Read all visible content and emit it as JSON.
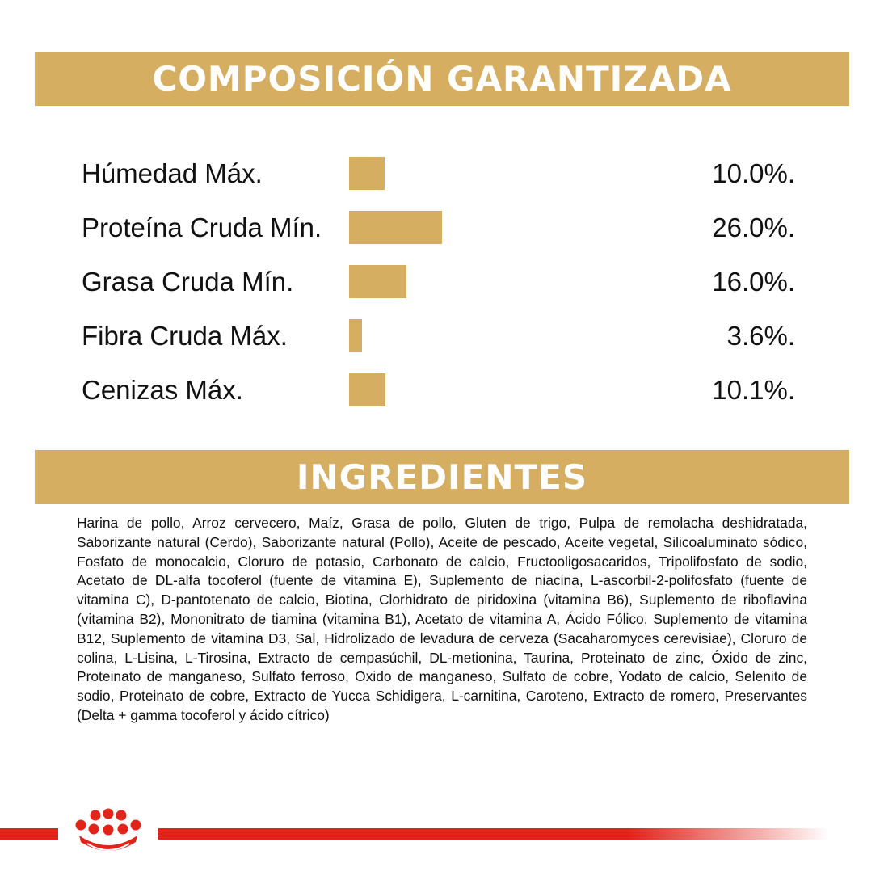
{
  "guaranteed_composition": {
    "title": "COMPOSICIÓN GARANTIZADA",
    "bar_color": "#d5ae62",
    "items": [
      {
        "label": "Húmedad Máx.",
        "value_text": "10.0%.",
        "value": 10.0
      },
      {
        "label": "Proteína Cruda Mín.",
        "value_text": "26.0%.",
        "value": 26.0
      },
      {
        "label": "Grasa Cruda Mín.",
        "value_text": "16.0%.",
        "value": 16.0
      },
      {
        "label": "Fibra Cruda Máx.",
        "value_text": "3.6%.",
        "value": 3.6
      },
      {
        "label": "Cenizas Máx.",
        "value_text": "10.1%.",
        "value": 10.1
      }
    ]
  },
  "ingredients": {
    "title": "INGREDIENTES",
    "text": "Harina de pollo, Arroz cervecero, Maíz, Grasa de pollo, Gluten de trigo, Pulpa de remolacha deshidratada, Saborizante natural (Cerdo), Saborizante natural (Pollo), Aceite de pescado, Aceite vegetal, Silicoaluminato sódico, Fosfato de monocalcio, Cloruro de potasio, Carbonato de calcio, Fructooligosacaridos, Tripolifosfato de sodio, Acetato de DL-alfa tocoferol (fuente de vitamina E), Suplemento de niacina, L-ascorbil-2-polifosfato (fuente de vitamina C), D-pantotenato de calcio, Biotina, Clorhidrato de piridoxina (vitamina B6), Suplemento de riboflavina (vitamina B2), Mononitrato de tiamina (vitamina B1), Acetato de vitamina A, Ácido Fólico, Suplemento de vitamina B12, Suplemento de vitamina D3, Sal, Hidrolizado de levadura de cerveza (Sacaharomyces cerevisiae), Cloruro de colina, L-Lisina, L-Tirosina, Extracto de cempasúchil, DL-metionina, Taurina, Proteinato de zinc, Óxido de zinc, Proteinato de manganeso, Sulfato ferroso, Oxido de manganeso, Sulfato de cobre, Yodato de calcio, Selenito de sodio, Proteinato de cobre, Extracto de Yucca Schidigera, L-carnitina, Caroteno, Extracto de romero, Preservantes (Delta + gamma tocoferol y ácido cítrico)"
  },
  "footer": {
    "logo_icon": "royal-canin-crown-icon",
    "accent_color": "#e2231a"
  }
}
